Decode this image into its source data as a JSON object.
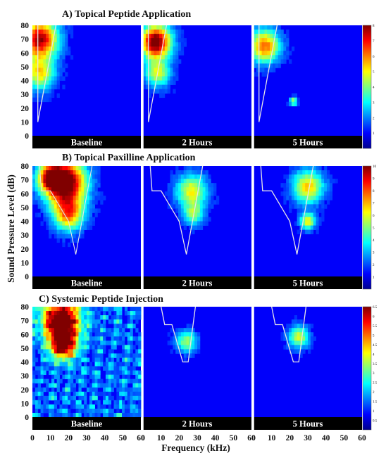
{
  "figure": {
    "ylabel": "Sound Pressure Level (dB)",
    "xlabel": "Frequency (kHz)"
  },
  "chart_data": [
    {
      "type": "heatmap",
      "title": "A) Topical Peptide Application",
      "panels": [
        "Baseline",
        "2 Hours",
        "5 Hours"
      ],
      "x_ticks": [
        0,
        10,
        20,
        30,
        40,
        50,
        60
      ],
      "y_ticks": [
        0,
        10,
        20,
        30,
        40,
        50,
        60,
        70,
        80
      ],
      "xlim": [
        0,
        60
      ],
      "ylim": [
        0,
        80
      ],
      "colorbar": {
        "min": 0,
        "max": 8,
        "ticks": [
          1,
          2,
          3,
          4,
          5,
          6,
          7,
          8
        ]
      },
      "hotspots": [
        [
          {
            "x": 4,
            "y": 70,
            "r": 7,
            "v": 0.85
          },
          {
            "x": 4,
            "y": 45,
            "r": 6,
            "v": 0.5
          }
        ],
        [
          {
            "x": 7,
            "y": 68,
            "r": 6,
            "v": 0.95
          },
          {
            "x": 8,
            "y": 45,
            "r": 5,
            "v": 0.45
          }
        ],
        [
          {
            "x": 6,
            "y": 65,
            "r": 6,
            "v": 0.65
          },
          {
            "x": 22,
            "y": 25,
            "r": 1.5,
            "v": 0.45
          }
        ]
      ],
      "threshold_curve": [
        [
          3,
          80
        ],
        [
          3,
          10
        ],
        [
          13,
          80
        ]
      ]
    },
    {
      "type": "heatmap",
      "title": "B) Topical Paxilline Application",
      "panels": [
        "Baseline",
        "2 Hours",
        "5 Hours"
      ],
      "x_ticks": [
        0,
        10,
        20,
        30,
        40,
        50,
        60
      ],
      "y_ticks": [
        0,
        10,
        20,
        30,
        40,
        50,
        60,
        70,
        80
      ],
      "xlim": [
        0,
        60
      ],
      "ylim": [
        0,
        80
      ],
      "colorbar": {
        "min": 0,
        "max": 10,
        "ticks": [
          1,
          2,
          3,
          4,
          5,
          6,
          7,
          8,
          9,
          10
        ]
      },
      "hotspots": [
        [
          {
            "x": 18,
            "y": 68,
            "r": 8,
            "v": 1.0
          },
          {
            "x": 20,
            "y": 45,
            "r": 6,
            "v": 0.6
          },
          {
            "x": 10,
            "y": 72,
            "r": 5,
            "v": 0.55
          }
        ],
        [
          {
            "x": 27,
            "y": 62,
            "r": 6,
            "v": 0.5
          },
          {
            "x": 28,
            "y": 45,
            "r": 4,
            "v": 0.35
          }
        ],
        [
          {
            "x": 30,
            "y": 65,
            "r": 6,
            "v": 0.55
          },
          {
            "x": 30,
            "y": 40,
            "r": 3,
            "v": 0.5
          }
        ]
      ],
      "threshold_curve": [
        [
          4,
          80
        ],
        [
          5,
          62
        ],
        [
          10,
          62
        ],
        [
          20,
          40
        ],
        [
          24,
          16
        ],
        [
          33,
          80
        ]
      ]
    },
    {
      "type": "heatmap",
      "title": "C) Systemic Peptide Injection",
      "panels": [
        "Baseline",
        "2 Hours",
        "5 Hours"
      ],
      "x_ticks": [
        0,
        10,
        20,
        30,
        40,
        50,
        60
      ],
      "y_ticks": [
        0,
        10,
        20,
        30,
        40,
        50,
        60,
        70,
        80
      ],
      "xlim": [
        0,
        60
      ],
      "ylim": [
        0,
        80
      ],
      "colorbar": {
        "min": 0,
        "max": 6.5,
        "ticks": [
          0.5,
          1,
          1.5,
          2,
          2.5,
          3,
          3.5,
          4,
          4.5,
          5,
          5.5,
          6,
          6.5
        ]
      },
      "hotspots": [
        [
          {
            "x": 16,
            "y": 70,
            "r": 7,
            "v": 1.0
          },
          {
            "x": 17,
            "y": 52,
            "r": 5,
            "v": 0.8
          }
        ],
        [
          {
            "x": 24,
            "y": 55,
            "r": 4,
            "v": 0.4
          }
        ],
        [
          {
            "x": 25,
            "y": 58,
            "r": 4,
            "v": 0.45
          }
        ]
      ],
      "threshold_curve": [
        [
          10,
          80
        ],
        [
          12,
          67
        ],
        [
          16,
          67
        ],
        [
          22,
          40
        ],
        [
          25,
          40
        ],
        [
          29,
          80
        ]
      ]
    }
  ]
}
